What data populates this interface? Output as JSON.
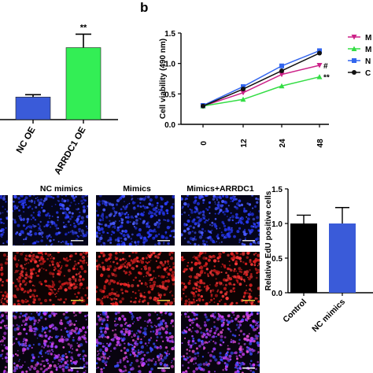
{
  "panel_labels": {
    "b": "b"
  },
  "chart_data": [
    {
      "type": "bar",
      "categories": [
        "NC OE",
        "ARRDC1 OE"
      ],
      "values": [
        0.47,
        1.5
      ],
      "errors": [
        0.05,
        0.28
      ],
      "colors": [
        "#3a5bd9",
        "#33ee55"
      ],
      "annotations": [
        "",
        "**"
      ],
      "title": "",
      "xlabel": "",
      "ylabel": ""
    },
    {
      "type": "line",
      "x": [
        0,
        12,
        24,
        48
      ],
      "xlabel": "",
      "ylabel": "Cell viability (490 nm)",
      "yticks": [
        "0.0",
        "0.5",
        "1.0",
        "1.5"
      ],
      "ylim": [
        0,
        1.5
      ],
      "series": [
        {
          "name": "M",
          "color": "#cc2288",
          "marker": "triangle-down",
          "values": [
            0.3,
            0.52,
            0.82,
            0.97
          ],
          "end_mark": "#"
        },
        {
          "name": "M",
          "color": "#33dd44",
          "marker": "triangle-up",
          "values": [
            0.3,
            0.41,
            0.63,
            0.78
          ],
          "end_mark": "**"
        },
        {
          "name": "N",
          "color": "#3366ee",
          "marker": "square",
          "values": [
            0.31,
            0.62,
            0.96,
            1.21
          ],
          "end_mark": ""
        },
        {
          "name": "C",
          "color": "#111111",
          "marker": "circle",
          "values": [
            0.3,
            0.58,
            0.88,
            1.17
          ],
          "end_mark": ""
        }
      ],
      "legend_position": "right"
    },
    {
      "type": "bar",
      "categories": [
        "Control",
        "NC mimics"
      ],
      "values": [
        1.0,
        1.0
      ],
      "errors": [
        0.12,
        0.23
      ],
      "colors": [
        "#000000",
        "#3a5bd9"
      ],
      "ylabel": "Relative EdU positive cells",
      "yticks": [
        "0.0",
        "0.5",
        "1.0",
        "1.5"
      ],
      "ylim": [
        0,
        1.5
      ]
    }
  ],
  "micrograph_panel": {
    "column_titles": [
      "NC mimics",
      "Mimics",
      "Mimics+ARRDC1"
    ],
    "row_stains": [
      "blue",
      "red",
      "merge"
    ]
  }
}
